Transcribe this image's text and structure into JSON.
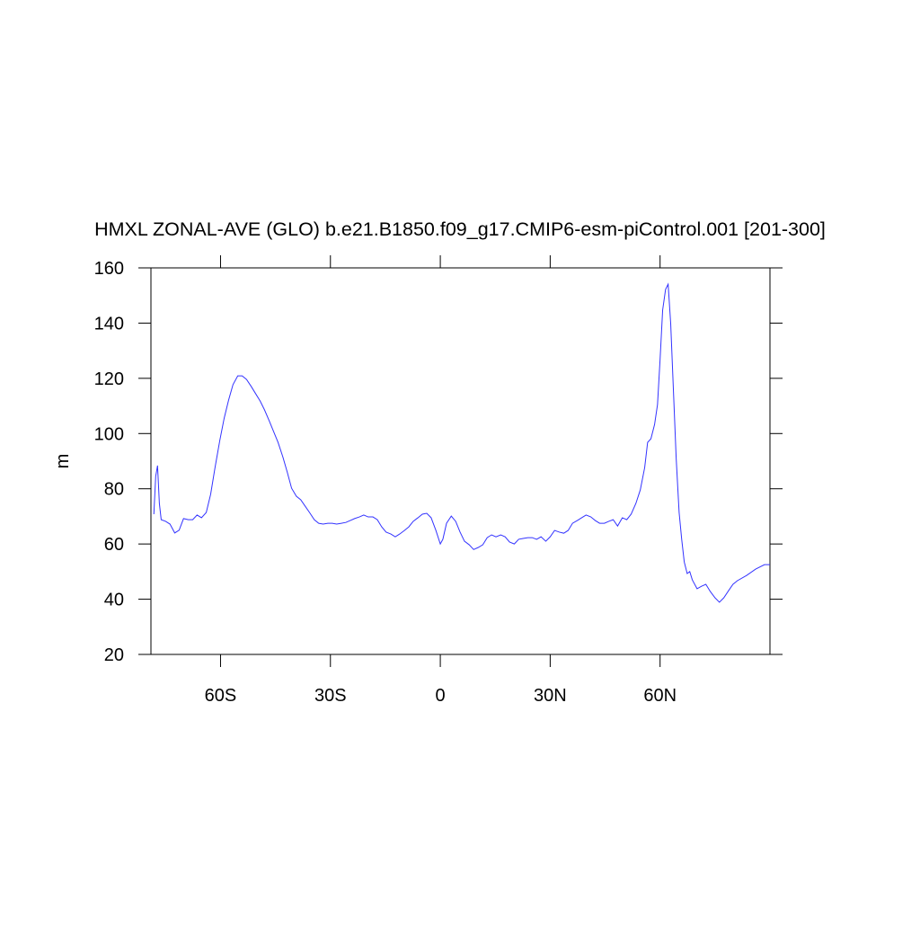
{
  "chart_data": {
    "type": "line",
    "title": "HMXL ZONAL-AVE (GLO) b.e21.B1850.f09_g17.CMIP6-esm-piControl.001 [201-300]",
    "y_label": "m",
    "x": [
      -78.2,
      -77.7,
      -77.2,
      -76.7,
      -76.2,
      -75,
      -73.8,
      -72.5,
      -71.3,
      -70.1,
      -68.8,
      -67.6,
      -66.4,
      -65.2,
      -63.9,
      -62.7,
      -61.5,
      -60.2,
      -59,
      -57.8,
      -56.6,
      -55.3,
      -54.1,
      -52.9,
      -51.6,
      -50.4,
      -49.2,
      -48,
      -46.7,
      -45.5,
      -44.3,
      -43,
      -41.8,
      -40.6,
      -39.3,
      -38.1,
      -36.9,
      -35.7,
      -34.4,
      -33.2,
      -32,
      -30.7,
      -29.5,
      -28.3,
      -27,
      -25.8,
      -24.6,
      -23.4,
      -22.1,
      -20.9,
      -19.7,
      -18.4,
      -17.2,
      -16,
      -14.8,
      -13.5,
      -12.3,
      -11.1,
      -9.8,
      -8.6,
      -7.4,
      -6.1,
      -4.9,
      -3.7,
      -2.5,
      -1.2,
      0,
      0.7,
      1.7,
      3,
      4.2,
      5.4,
      6.6,
      7.9,
      9.1,
      10.3,
      11.6,
      12.8,
      14,
      15.2,
      16.5,
      17.7,
      18.9,
      20.2,
      21.4,
      22.6,
      23.9,
      25.1,
      26.3,
      27.5,
      28.8,
      30,
      31.2,
      32.5,
      33.7,
      34.9,
      36.1,
      37.4,
      38.6,
      39.8,
      41.1,
      42.3,
      43.5,
      44.8,
      46,
      47.2,
      48.4,
      49.7,
      50.9,
      52.1,
      53.4,
      54.6,
      55.8,
      56.6,
      57.5,
      58.5,
      59.3,
      60,
      60.7,
      61.5,
      62.2,
      62.9,
      63.7,
      64.4,
      65.2,
      65.9,
      66.6,
      67.4,
      68.1,
      68.8,
      70.1,
      71.3,
      72.5,
      73.7,
      75,
      76.2,
      77.4,
      78.7,
      79.9,
      81.1,
      83.6,
      86.1,
      88.5,
      90
    ],
    "series": [
      {
        "name": "HMXL",
        "color": "#3333ff",
        "values": [
          70.8,
          84.5,
          88.4,
          74.7,
          68.8,
          68.2,
          67.2,
          64,
          65,
          69.2,
          68.8,
          68.8,
          70.5,
          69.5,
          71.4,
          78,
          87.7,
          97.5,
          105.6,
          112.1,
          117.7,
          120.9,
          120.9,
          119.6,
          117,
          114.4,
          111.8,
          108.6,
          104.6,
          100.7,
          96.8,
          91.6,
          86.1,
          80.2,
          77.3,
          76,
          73.7,
          71.4,
          68.8,
          67.5,
          67.2,
          67.5,
          67.5,
          67.2,
          67.5,
          67.8,
          68.5,
          69.2,
          69.8,
          70.5,
          69.8,
          69.8,
          68.8,
          66.2,
          64.3,
          63.6,
          62.6,
          63.6,
          64.9,
          66.2,
          68.2,
          69.5,
          70.8,
          71.1,
          69.5,
          64.9,
          60,
          61.7,
          67.5,
          70.1,
          68.2,
          64.3,
          61,
          59.7,
          58,
          58.7,
          59.7,
          62.3,
          63.3,
          62.6,
          63.3,
          62.6,
          60.7,
          60,
          61.7,
          62,
          62.3,
          62.3,
          61.7,
          62.6,
          61,
          62.6,
          64.9,
          64.3,
          63.9,
          64.9,
          67.5,
          68.5,
          69.5,
          70.5,
          69.8,
          68.5,
          67.5,
          67.5,
          68.2,
          68.8,
          66.5,
          69.5,
          68.8,
          70.8,
          74.7,
          79.6,
          87.7,
          96.8,
          98.1,
          103.3,
          110.5,
          126.8,
          144.7,
          152.2,
          154.1,
          139.8,
          113.8,
          91,
          71.4,
          61.7,
          53.5,
          49.3,
          50,
          47,
          43.8,
          44.7,
          45.4,
          42.8,
          40.5,
          38.9,
          40.5,
          43.1,
          45.4,
          46.7,
          48.6,
          50.9,
          52.5,
          52.5
        ]
      }
    ],
    "xlim": [
      -79,
      90
    ],
    "xticks": [
      {
        "value": -60,
        "label": "60S"
      },
      {
        "value": -30,
        "label": "30S"
      },
      0,
      {
        "value": 30,
        "label": "30N"
      },
      {
        "value": 60,
        "label": "60N"
      }
    ],
    "ylim": [
      20,
      160
    ],
    "yticks": [
      20,
      40,
      60,
      80,
      100,
      120,
      140,
      160
    ]
  }
}
